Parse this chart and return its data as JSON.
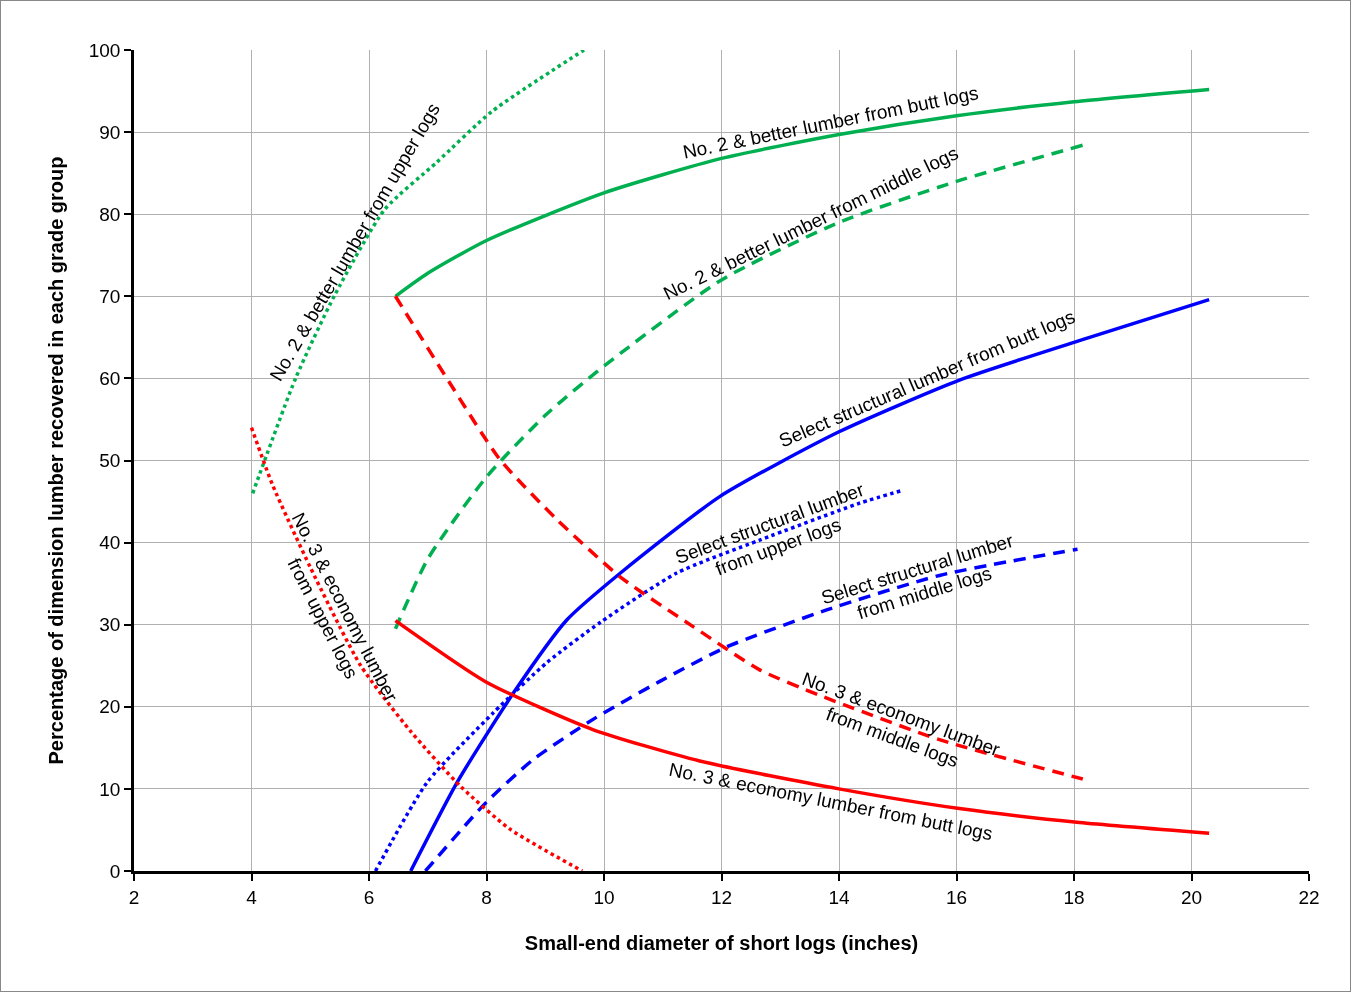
{
  "chart_data": {
    "type": "line",
    "xlabel": "Small-end diameter of short logs (inches)",
    "ylabel": "Percentage of dimension lumber recovered in each grade group",
    "xlim": [
      2,
      22
    ],
    "xticks": [
      2,
      4,
      6,
      8,
      10,
      12,
      14,
      16,
      18,
      20,
      22
    ],
    "ylim": [
      0,
      100
    ],
    "yticks": [
      0,
      10,
      20,
      30,
      40,
      50,
      60,
      70,
      80,
      90,
      100
    ],
    "grid": true,
    "legend": false,
    "marker": "none",
    "series": [
      {
        "name": "No. 2 & better lumber from butt logs",
        "color": "#00b050",
        "line_style": "solid",
        "x": [
          6.45,
          7,
          8,
          10,
          12,
          14,
          16,
          18,
          20.3
        ],
        "values": [
          70,
          72.8,
          76.8,
          82.6,
          86.8,
          89.7,
          92,
          93.7,
          95.2
        ]
      },
      {
        "name": "No. 2 & better lumber from middle logs",
        "color": "#00b050",
        "line_style": "dashed",
        "x": [
          6.45,
          7,
          8,
          9,
          10,
          12,
          14,
          16,
          18.15
        ],
        "values": [
          29.5,
          38,
          48,
          55.5,
          61.5,
          72,
          79,
          84,
          88.4
        ]
      },
      {
        "name": "No. 2 & better lumber from upper logs",
        "color": "#00b050",
        "line_style": "dotted",
        "x": [
          4.02,
          4.75,
          5.42,
          6.27,
          7.15,
          8.09,
          9.66
        ],
        "values": [
          46,
          60,
          70.2,
          80.6,
          86.3,
          92.5,
          100
        ]
      },
      {
        "name": "Select structural lumber from butt logs",
        "color": "#0000ff",
        "line_style": "solid",
        "x": [
          6.71,
          7.5,
          8.46,
          9.37,
          10.28,
          11.97,
          14,
          16.05,
          18.09,
          20.3
        ],
        "values": [
          0,
          10.8,
          21.7,
          30.6,
          36.3,
          45.6,
          53.5,
          59.8,
          64.6,
          69.6
        ]
      },
      {
        "name": "Select structural lumber from upper logs",
        "color": "#0000ff",
        "line_style": "dotted",
        "x": [
          6.11,
          6.99,
          8.12,
          9.03,
          9.94,
          11.24,
          12.65,
          14.35,
          15.1
        ],
        "values": [
          0,
          10.8,
          19.3,
          25.4,
          30.3,
          36.3,
          40.3,
          44.8,
          46.4
        ]
      },
      {
        "name": "Select structural lumber from middle logs",
        "color": "#0000ff",
        "line_style": "dashed",
        "x": [
          6.96,
          8,
          8.8,
          9.82,
          10.95,
          12.09,
          13.79,
          15.71,
          18.06
        ],
        "values": [
          0,
          8.4,
          13.6,
          18.5,
          23.1,
          27.3,
          31.8,
          36,
          39.2
        ]
      },
      {
        "name": "No. 3 & economy lumber from butt logs",
        "color": "#ff0000",
        "line_style": "solid",
        "x": [
          6.45,
          8,
          9.82,
          11.63,
          14,
          16.05,
          18.09,
          20.3
        ],
        "values": [
          30.5,
          23,
          17.2,
          13.4,
          10,
          7.6,
          5.9,
          4.6
        ]
      },
      {
        "name": "No. 3 & economy lumber from middle logs",
        "color": "#ff0000",
        "line_style": "dashed",
        "x": [
          6.45,
          7.37,
          8.22,
          9.2,
          10.28,
          11.51,
          12.65,
          13.67,
          15.71,
          18.15
        ],
        "values": [
          70,
          59.5,
          50.2,
          42.8,
          35.8,
          29.8,
          24.5,
          21.4,
          16,
          11.2
        ]
      },
      {
        "name": "No. 3 & economy lumber from upper logs",
        "color": "#ff0000",
        "line_style": "dotted",
        "x": [
          4,
          4.36,
          5,
          5.86,
          6.71,
          7.56,
          8.4,
          9.63
        ],
        "values": [
          54,
          47,
          37,
          25,
          17,
          10.3,
          5.1,
          0
        ]
      }
    ]
  }
}
